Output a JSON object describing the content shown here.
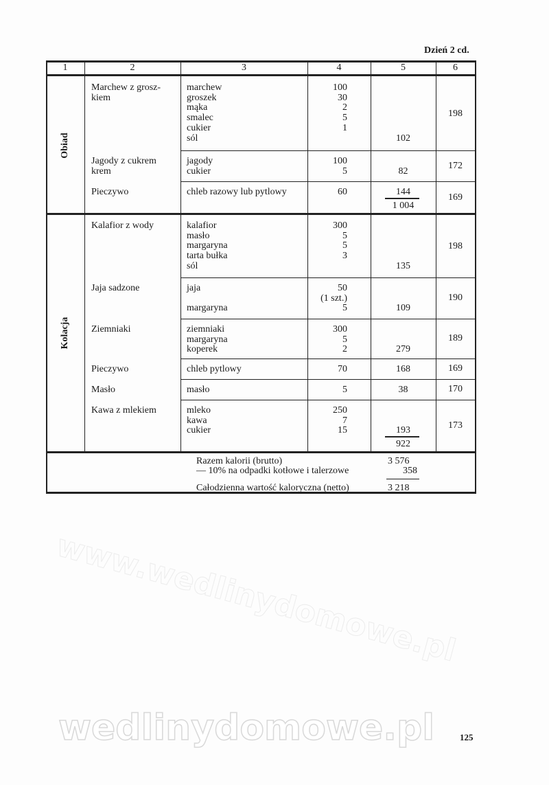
{
  "header_right": "Dzień 2 cd.",
  "columns": [
    "1",
    "2",
    "3",
    "4",
    "5",
    "6"
  ],
  "sections": [
    {
      "label": "Obiad",
      "dishes": [
        {
          "name": [
            "Marchew z grosz-",
            "kiem"
          ],
          "ingredients": [
            {
              "name": "marchew",
              "qty": "100"
            },
            {
              "name": "groszek",
              "qty": "30"
            },
            {
              "name": "mąka",
              "qty": "2"
            },
            {
              "name": "smalec",
              "qty": "5"
            },
            {
              "name": "cukier",
              "qty": "1"
            },
            {
              "name": "sól",
              "qty": ""
            }
          ],
          "kcal": "102",
          "col6": "198"
        },
        {
          "name": [
            "Jagody z cukrem",
            "krem"
          ],
          "ingredients": [
            {
              "name": "jagody",
              "qty": "100"
            },
            {
              "name": "cukier",
              "qty": "5"
            }
          ],
          "kcal": "82",
          "col6": "172"
        },
        {
          "name": [
            "Pieczywo"
          ],
          "ingredients": [
            {
              "name": "chleb razowy lub pytlowy",
              "qty": "60"
            }
          ],
          "kcal": "144",
          "col6": "169",
          "subtotal": "1 004"
        }
      ]
    },
    {
      "label": "Kolacja",
      "dishes": [
        {
          "name": [
            "Kalafior z wody"
          ],
          "ingredients": [
            {
              "name": "kalafior",
              "qty": "300"
            },
            {
              "name": "masło",
              "qty": "5"
            },
            {
              "name": "margaryna",
              "qty": "5"
            },
            {
              "name": "tarta bułka",
              "qty": "3"
            },
            {
              "name": "sól",
              "qty": ""
            }
          ],
          "kcal": "135",
          "col6": "198"
        },
        {
          "name": [
            "Jaja sadzone"
          ],
          "ingredients": [
            {
              "name": "jaja",
              "qty": "50"
            },
            {
              "name": "",
              "qty": "(1 szt.)"
            },
            {
              "name": "margaryna",
              "qty": "5"
            }
          ],
          "kcal": "109",
          "col6": "190"
        },
        {
          "name": [
            "Ziemniaki"
          ],
          "ingredients": [
            {
              "name": "ziemniaki",
              "qty": "300"
            },
            {
              "name": "margaryna",
              "qty": "5"
            },
            {
              "name": "koperek",
              "qty": "2"
            }
          ],
          "kcal": "279",
          "col6": "189"
        },
        {
          "name": [
            "Pieczywo"
          ],
          "ingredients": [
            {
              "name": "chleb pytlowy",
              "qty": "70"
            }
          ],
          "kcal": "168",
          "col6": "169"
        },
        {
          "name": [
            "Masło"
          ],
          "ingredients": [
            {
              "name": "masło",
              "qty": "5"
            }
          ],
          "kcal": "38",
          "col6": "170"
        },
        {
          "name": [
            "Kawa z mlekiem"
          ],
          "ingredients": [
            {
              "name": "mleko",
              "qty": "250"
            },
            {
              "name": "kawa",
              "qty": "7"
            },
            {
              "name": "cukier",
              "qty": "15"
            }
          ],
          "kcal": "193",
          "col6": "173",
          "subtotal": "922"
        }
      ]
    }
  ],
  "summary": {
    "gross_label": "Razem kalorii (brutto)",
    "gross_value": "3 576",
    "waste_label": "— 10% na odpadki kotłowe i talerzowe",
    "waste_value": "358",
    "net_label": "Całodzienna wartość kaloryczna (netto)",
    "net_value": "3 218"
  },
  "page_number": "125",
  "watermark": "wedlinydomowe.pl",
  "diagonal_watermark": "www.wedlinydomowe.pl"
}
